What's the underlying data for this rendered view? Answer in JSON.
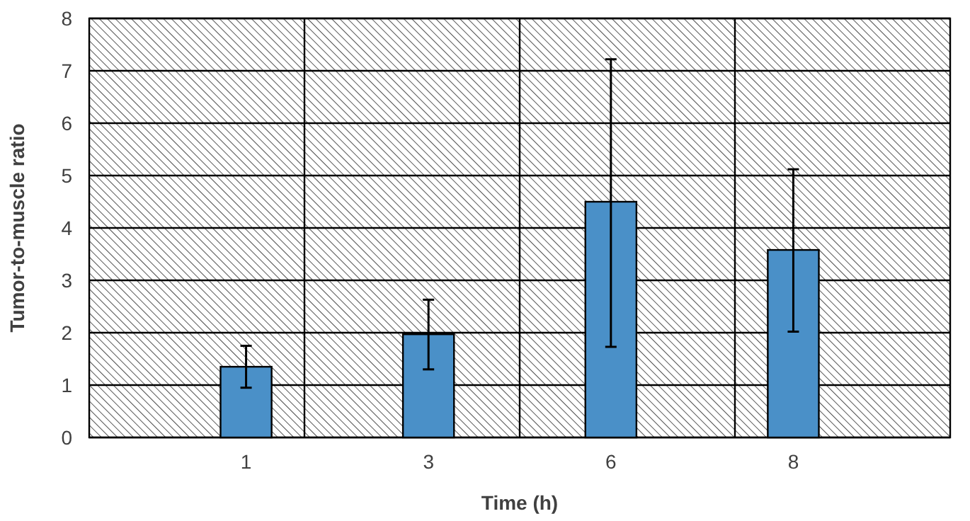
{
  "chart_data": {
    "type": "bar",
    "xlabel": "Time (h)",
    "ylabel": "Tumor-to-muscle ratio",
    "categories": [
      "1",
      "3",
      "6",
      "8"
    ],
    "values": [
      1.35,
      1.97,
      4.5,
      3.58
    ],
    "errors": [
      [
        0.95,
        1.75
      ],
      [
        1.3,
        2.63
      ],
      [
        1.73,
        7.22
      ],
      [
        2.02,
        5.12
      ]
    ],
    "color": "#4a90c8",
    "ylim": [
      0,
      8
    ],
    "yticks": [
      0,
      1,
      2,
      3,
      4,
      5,
      6,
      7,
      8
    ],
    "grid": true
  }
}
